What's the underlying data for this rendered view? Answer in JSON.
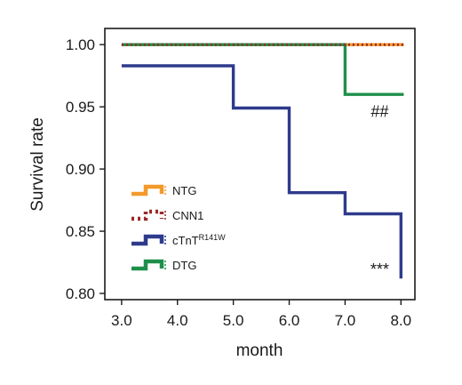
{
  "chart_data": {
    "type": "line",
    "step": true,
    "title": "",
    "xlabel": "month",
    "ylabel": "Survival rate",
    "xlim": [
      2.7,
      8.25
    ],
    "ylim": [
      0.795,
      1.013
    ],
    "xticks": [
      3.0,
      4.0,
      5.0,
      6.0,
      7.0,
      8.0
    ],
    "xtick_labels": [
      "3.0",
      "4.0",
      "5.0",
      "6.0",
      "7.0",
      "8.0"
    ],
    "yticks": [
      0.8,
      0.85,
      0.9,
      0.95,
      1.0
    ],
    "ytick_labels": [
      "0.80",
      "0.85",
      "0.90",
      "0.95",
      "1.00"
    ],
    "grid": false,
    "legend_position": "left-center",
    "series": [
      {
        "name": "NTG",
        "color": "#f39a2a",
        "style": "solid",
        "points": [
          [
            3.0,
            1.0
          ],
          [
            8.05,
            1.0
          ]
        ]
      },
      {
        "name": "CNN1",
        "color": "#9b2a2a",
        "style": "dotted",
        "points": [
          [
            3.0,
            1.0
          ],
          [
            8.05,
            1.0
          ]
        ]
      },
      {
        "name": "cTnT",
        "name_superscript": "R141W",
        "color": "#2e3a8c",
        "style": "solid",
        "points": [
          [
            3.0,
            0.983
          ],
          [
            5.0,
            0.983
          ],
          [
            5.0,
            0.949
          ],
          [
            6.0,
            0.949
          ],
          [
            6.0,
            0.881
          ],
          [
            7.0,
            0.881
          ],
          [
            7.0,
            0.864
          ],
          [
            8.0,
            0.864
          ],
          [
            8.0,
            0.812
          ]
        ]
      },
      {
        "name": "DTG",
        "color": "#1e8f4a",
        "style": "solid",
        "points": [
          [
            3.0,
            1.0
          ],
          [
            7.0,
            1.0
          ],
          [
            7.0,
            0.96
          ],
          [
            8.05,
            0.96
          ]
        ]
      }
    ],
    "annotations": [
      {
        "text": "##",
        "x": 7.62,
        "y": 0.942
      },
      {
        "text": "***",
        "x": 7.62,
        "y": 0.815
      }
    ]
  }
}
